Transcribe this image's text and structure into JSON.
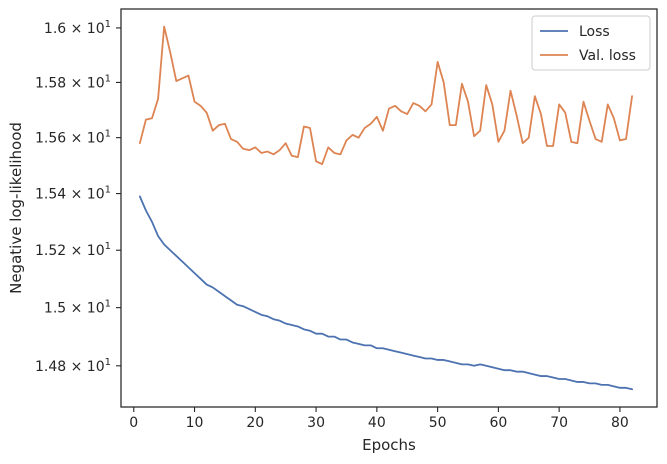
{
  "chart_data": {
    "type": "line",
    "xlabel": "Epochs",
    "ylabel": "Negative log-likelihood",
    "xlim": [
      -2.1,
      86.1
    ],
    "ylim": [
      14.66,
      16.07
    ],
    "y_scale": "log",
    "x_ticks": [
      {
        "value": 0,
        "label": "0"
      },
      {
        "value": 10,
        "label": "10"
      },
      {
        "value": 20,
        "label": "20"
      },
      {
        "value": 30,
        "label": "30"
      },
      {
        "value": 40,
        "label": "40"
      },
      {
        "value": 50,
        "label": "50"
      },
      {
        "value": 60,
        "label": "60"
      },
      {
        "value": 70,
        "label": "70"
      },
      {
        "value": 80,
        "label": "80"
      }
    ],
    "y_ticks": [
      {
        "value": 14.8,
        "mantissa": "1.48",
        "base": "10",
        "exp": "1"
      },
      {
        "value": 15.0,
        "mantissa": "1.5",
        "base": "10",
        "exp": "1"
      },
      {
        "value": 15.2,
        "mantissa": "1.52",
        "base": "10",
        "exp": "1"
      },
      {
        "value": 15.4,
        "mantissa": "1.54",
        "base": "10",
        "exp": "1"
      },
      {
        "value": 15.6,
        "mantissa": "1.56",
        "base": "10",
        "exp": "1"
      },
      {
        "value": 15.8,
        "mantissa": "1.58",
        "base": "10",
        "exp": "1"
      },
      {
        "value": 16.0,
        "mantissa": "1.6",
        "base": "10",
        "exp": "1"
      }
    ],
    "times_sign": "×",
    "grid": false,
    "legend_position": "top-right",
    "x": [
      1,
      2,
      3,
      4,
      5,
      6,
      7,
      8,
      9,
      10,
      11,
      12,
      13,
      14,
      15,
      16,
      17,
      18,
      19,
      20,
      21,
      22,
      23,
      24,
      25,
      26,
      27,
      28,
      29,
      30,
      31,
      32,
      33,
      34,
      35,
      36,
      37,
      38,
      39,
      40,
      41,
      42,
      43,
      44,
      45,
      46,
      47,
      48,
      49,
      50,
      51,
      52,
      53,
      54,
      55,
      56,
      57,
      58,
      59,
      60,
      61,
      62,
      63,
      64,
      65,
      66,
      67,
      68,
      69,
      70,
      71,
      72,
      73,
      74,
      75,
      76,
      77,
      78,
      79,
      80,
      81,
      82
    ],
    "series": [
      {
        "name": "Loss",
        "color": "#4c72b0",
        "values": [
          15.39,
          15.34,
          15.3,
          15.25,
          15.22,
          15.2,
          15.18,
          15.16,
          15.14,
          15.12,
          15.1,
          15.08,
          15.07,
          15.055,
          15.04,
          15.025,
          15.01,
          15.005,
          14.995,
          14.985,
          14.975,
          14.97,
          14.96,
          14.955,
          14.945,
          14.94,
          14.935,
          14.925,
          14.92,
          14.91,
          14.91,
          14.9,
          14.9,
          14.89,
          14.89,
          14.88,
          14.875,
          14.87,
          14.87,
          14.86,
          14.86,
          14.855,
          14.85,
          14.845,
          14.84,
          14.835,
          14.83,
          14.825,
          14.825,
          14.82,
          14.82,
          14.815,
          14.81,
          14.805,
          14.805,
          14.8,
          14.805,
          14.8,
          14.795,
          14.79,
          14.785,
          14.785,
          14.78,
          14.78,
          14.775,
          14.77,
          14.765,
          14.765,
          14.76,
          14.755,
          14.755,
          14.75,
          14.745,
          14.745,
          14.74,
          14.74,
          14.735,
          14.735,
          14.73,
          14.725,
          14.725,
          14.72
        ]
      },
      {
        "name": "Val. loss",
        "color": "#dd8452",
        "values": [
          15.58,
          15.665,
          15.67,
          15.74,
          16.005,
          15.91,
          15.805,
          15.815,
          15.825,
          15.73,
          15.715,
          15.69,
          15.625,
          15.645,
          15.65,
          15.595,
          15.585,
          15.56,
          15.555,
          15.565,
          15.545,
          15.55,
          15.54,
          15.555,
          15.58,
          15.535,
          15.53,
          15.64,
          15.635,
          15.515,
          15.505,
          15.565,
          15.545,
          15.54,
          15.59,
          15.61,
          15.6,
          15.635,
          15.65,
          15.675,
          15.625,
          15.705,
          15.715,
          15.695,
          15.685,
          15.725,
          15.715,
          15.695,
          15.72,
          15.875,
          15.8,
          15.645,
          15.645,
          15.795,
          15.73,
          15.605,
          15.625,
          15.79,
          15.72,
          15.585,
          15.625,
          15.77,
          15.68,
          15.58,
          15.6,
          15.75,
          15.685,
          15.57,
          15.57,
          15.72,
          15.69,
          15.585,
          15.58,
          15.73,
          15.66,
          15.595,
          15.585,
          15.72,
          15.67,
          15.59,
          15.595,
          15.75
        ]
      }
    ]
  }
}
